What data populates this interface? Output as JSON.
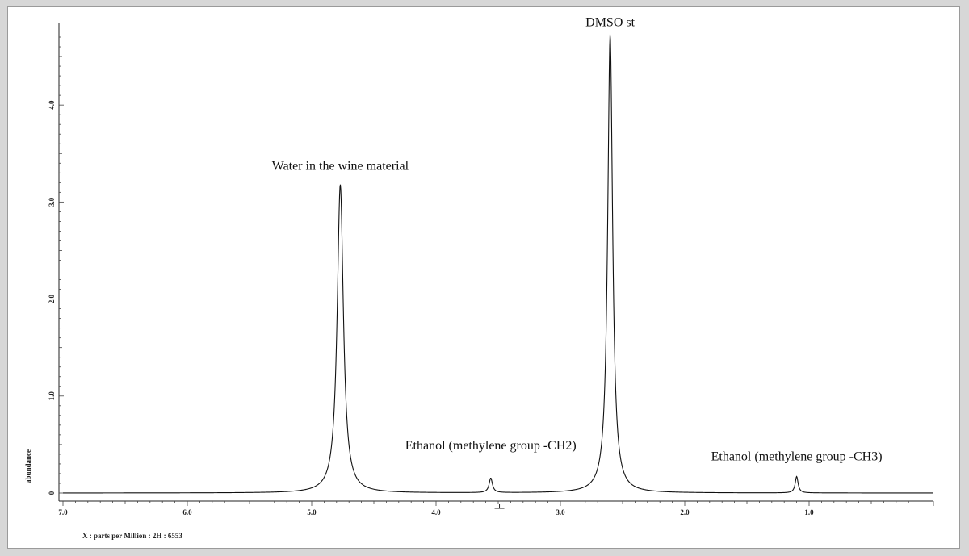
{
  "chart_data": {
    "type": "line",
    "xlabel": "X : parts per Million : 2H : 6553",
    "ylabel": "abundance",
    "xlim": [
      7.0,
      0.0
    ],
    "ylim": [
      0,
      4.75
    ],
    "x_reversed": true,
    "x_ticks": [
      7.0,
      6.0,
      5.0,
      4.0,
      3.0,
      2.0,
      1.0
    ],
    "x_tick_labels": [
      "7.0",
      "6.0",
      "5.0",
      "4.0",
      "3.0",
      "2.0",
      "1.0"
    ],
    "y_ticks": [
      0,
      1.0,
      2.0,
      3.0,
      4.0
    ],
    "y_tick_labels": [
      "0",
      "1.0",
      "2.0",
      "3.0",
      "4.0"
    ],
    "grid": false,
    "peaks": [
      {
        "position": 4.77,
        "height": 3.18,
        "label": "Water in the wine material"
      },
      {
        "position": 3.56,
        "height": 0.15,
        "label": "Ethanol (methylene group -CH2)"
      },
      {
        "position": 2.6,
        "height": 4.73,
        "label": "DMSO st"
      },
      {
        "position": 1.1,
        "height": 0.17,
        "label": "Ethanol (methylene group -CH3)"
      }
    ],
    "baseline": 0
  }
}
